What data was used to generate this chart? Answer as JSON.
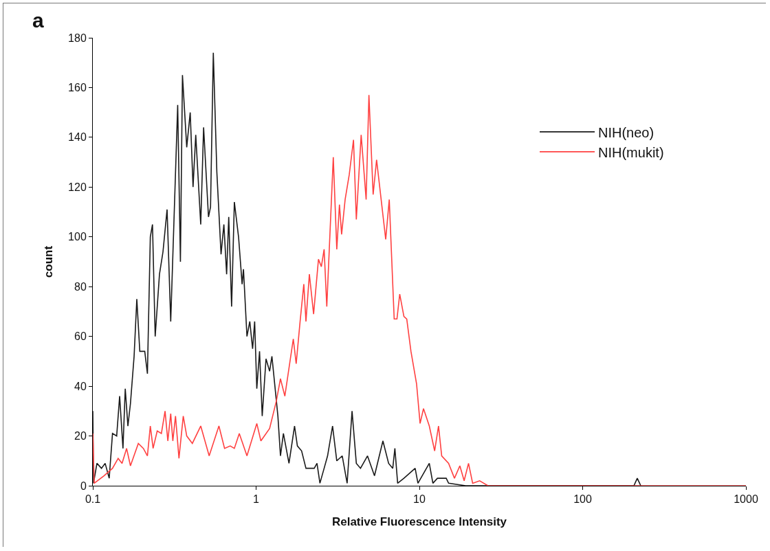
{
  "chart_data": {
    "type": "line",
    "xlabel": "Relative Fluorescence Intensity",
    "ylabel": "count",
    "annotations": [
      "a"
    ],
    "log": "x",
    "grid": false,
    "legend": "top right",
    "marker": "none",
    "line_style": "solid",
    "xlim": [
      0.1,
      1000
    ],
    "xticks": [
      0.1,
      1,
      10,
      100,
      1000
    ],
    "ylim": [
      0,
      180
    ],
    "yticks": [
      0,
      20,
      40,
      60,
      80,
      100,
      120,
      140,
      160,
      180
    ],
    "series": [
      {
        "name": "NIH(neo)",
        "color": "#1a1a1a",
        "x": [
          0.1,
          0.101,
          0.106,
          0.113,
          0.119,
          0.126,
          0.132,
          0.14,
          0.146,
          0.153,
          0.158,
          0.164,
          0.17,
          0.179,
          0.186,
          0.194,
          0.208,
          0.216,
          0.225,
          0.232,
          0.241,
          0.256,
          0.269,
          0.285,
          0.3,
          0.331,
          0.344,
          0.354,
          0.376,
          0.395,
          0.411,
          0.427,
          0.458,
          0.477,
          0.511,
          0.526,
          0.547,
          0.575,
          0.61,
          0.635,
          0.66,
          0.68,
          0.708,
          0.736,
          0.781,
          0.821,
          0.837,
          0.879,
          0.915,
          0.952,
          0.98,
          1.01,
          1.05,
          1.09,
          1.15,
          1.21,
          1.25,
          1.36,
          1.41,
          1.47,
          1.59,
          1.72,
          1.79,
          1.9,
          2.02,
          2.27,
          2.36,
          2.46,
          2.61,
          2.74,
          2.94,
          3.12,
          3.37,
          3.61,
          3.87,
          4.11,
          4.36,
          4.81,
          5.31,
          5.98,
          6.48,
          6.87,
          7.08,
          7.36,
          8.04,
          9.42,
          9.8,
          11.5,
          12.1,
          12.9,
          14.6,
          15.1,
          19.2,
          206,
          216,
          227
        ],
        "values": [
          30,
          1,
          9,
          7,
          9,
          3,
          21,
          20,
          36,
          15,
          39,
          24,
          33,
          52,
          75,
          54,
          54,
          45,
          100,
          105,
          60,
          85,
          94,
          111,
          66,
          153,
          90,
          165,
          136,
          150,
          120,
          141,
          105,
          144,
          108,
          112,
          174,
          126,
          93,
          105,
          85,
          108,
          72,
          114,
          100,
          81,
          87,
          60,
          66,
          55,
          66,
          39,
          54,
          28,
          51,
          46,
          52,
          28,
          12,
          21,
          9,
          24,
          16,
          14,
          7,
          7,
          9,
          1,
          7,
          12,
          24,
          10,
          12,
          1,
          30,
          9,
          7,
          12,
          4,
          18,
          9,
          7,
          15,
          1,
          3,
          7,
          1,
          9,
          1,
          3,
          3,
          1,
          0,
          0,
          3,
          0
        ]
      },
      {
        "name": "NIH(mukit)",
        "color": "#ff4040",
        "x": [
          0.1,
          0.102,
          0.117,
          0.132,
          0.143,
          0.151,
          0.161,
          0.17,
          0.19,
          0.204,
          0.216,
          0.225,
          0.234,
          0.248,
          0.263,
          0.277,
          0.288,
          0.3,
          0.309,
          0.321,
          0.337,
          0.358,
          0.376,
          0.407,
          0.458,
          0.516,
          0.592,
          0.641,
          0.694,
          0.736,
          0.789,
          0.879,
          1.01,
          1.07,
          1.21,
          1.33,
          1.41,
          1.5,
          1.69,
          1.76,
          1.86,
          1.96,
          2.02,
          2.12,
          2.25,
          2.41,
          2.51,
          2.61,
          2.71,
          2.97,
          3.12,
          3.24,
          3.34,
          3.51,
          3.72,
          3.95,
          4.11,
          4.4,
          4.72,
          4.91,
          5.21,
          5.47,
          6.22,
          6.54,
          7.01,
          7.29,
          7.58,
          8.04,
          8.37,
          8.88,
          9.61,
          10.1,
          10.6,
          11.5,
          12.4,
          13.1,
          13.7,
          15.1,
          16.4,
          17.7,
          18.8,
          20.0,
          21.2,
          23.4,
          26.3,
          1000
        ],
        "values": [
          21,
          1,
          4,
          7,
          11,
          9,
          15,
          8,
          17,
          15,
          12,
          24,
          15,
          22,
          21,
          30,
          18,
          29,
          18,
          28,
          11,
          28,
          20,
          17,
          24,
          12,
          24,
          15,
          16,
          15,
          21,
          12,
          25,
          18,
          23,
          34,
          43,
          36,
          59,
          49,
          66,
          81,
          66,
          85,
          69,
          91,
          88,
          95,
          72,
          132,
          95,
          113,
          101,
          115,
          125,
          139,
          107,
          141,
          115,
          157,
          117,
          131,
          99,
          115,
          67,
          67,
          77,
          68,
          67,
          54,
          41,
          25,
          31,
          24,
          14,
          24,
          12,
          9,
          3,
          8,
          2,
          9,
          1,
          2,
          0,
          0
        ]
      }
    ]
  }
}
